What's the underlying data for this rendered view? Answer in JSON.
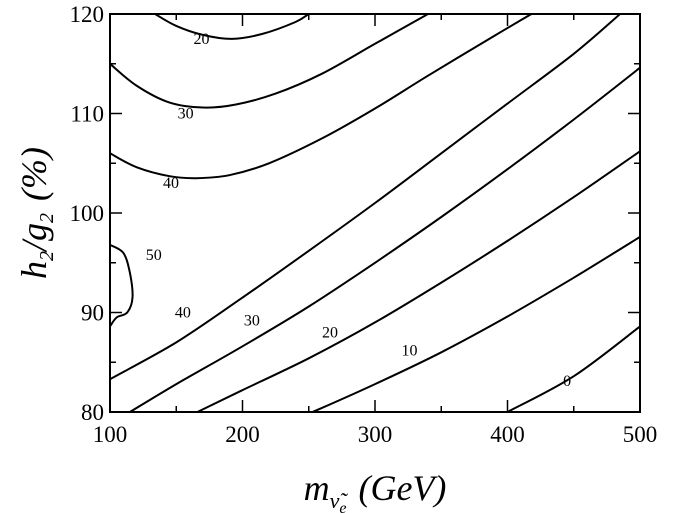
{
  "chart_data": {
    "type": "contour",
    "xlabel": {
      "main": "m",
      "sub1": "ν̃",
      "sub2": "e",
      "unit": "(GeV)"
    },
    "ylabel": {
      "main": "h",
      "sub1": "2",
      "mid": "/g",
      "sub2": "2",
      "unit": "(%)"
    },
    "xlim": [
      100,
      500
    ],
    "ylim": [
      80,
      120
    ],
    "xticks": [
      100,
      200,
      300,
      400,
      500
    ],
    "yticks": [
      80,
      90,
      100,
      110,
      120
    ],
    "grid": false,
    "contours": [
      {
        "level": "20",
        "points": [
          [
            134,
            120
          ],
          [
            150,
            118.8
          ],
          [
            170,
            117.9
          ],
          [
            192,
            117.5
          ],
          [
            215,
            118
          ],
          [
            240,
            119.2
          ],
          [
            250,
            120
          ]
        ],
        "label_at": [
          163,
          117
        ]
      },
      {
        "level": "30",
        "points": [
          [
            100,
            115
          ],
          [
            120,
            112.8
          ],
          [
            145,
            111.1
          ],
          [
            170,
            110.6
          ],
          [
            195,
            110.9
          ],
          [
            225,
            112
          ],
          [
            260,
            114
          ],
          [
            300,
            117
          ],
          [
            340,
            120
          ]
        ],
        "label_at": [
          151,
          109.5
        ]
      },
      {
        "level": "40",
        "points": [
          [
            100,
            106
          ],
          [
            120,
            104.6
          ],
          [
            145,
            103.7
          ],
          [
            165,
            103.5
          ],
          [
            190,
            103.8
          ],
          [
            220,
            105
          ],
          [
            260,
            107.5
          ],
          [
            300,
            110.5
          ],
          [
            340,
            113.8
          ],
          [
            390,
            117.8
          ],
          [
            418,
            120
          ]
        ],
        "label_at": [
          140,
          102.5
        ]
      },
      {
        "level": "50",
        "points": [
          [
            100,
            96.8
          ],
          [
            110,
            96
          ],
          [
            115,
            94
          ],
          [
            117,
            91.5
          ],
          [
            113,
            90
          ],
          [
            105,
            89.5
          ],
          [
            100,
            88.6
          ]
        ],
        "label_at": [
          127,
          95.3
        ]
      },
      {
        "level": "40",
        "points": [
          [
            100,
            83.3
          ],
          [
            150,
            87
          ],
          [
            200,
            91.5
          ],
          [
            250,
            96.2
          ],
          [
            300,
            101
          ],
          [
            350,
            106
          ],
          [
            400,
            111
          ],
          [
            450,
            116
          ],
          [
            485,
            120
          ]
        ],
        "label_at": [
          149,
          89.5
        ]
      },
      {
        "level": "30",
        "points": [
          [
            115,
            80
          ],
          [
            150,
            82.8
          ],
          [
            200,
            86.6
          ],
          [
            250,
            90.6
          ],
          [
            300,
            95
          ],
          [
            350,
            99.6
          ],
          [
            400,
            104.4
          ],
          [
            450,
            109.4
          ],
          [
            500,
            114.6
          ]
        ],
        "label_at": [
          201,
          88.7
        ]
      },
      {
        "level": "20",
        "points": [
          [
            166,
            80
          ],
          [
            200,
            82.2
          ],
          [
            250,
            85.4
          ],
          [
            300,
            89
          ],
          [
            350,
            93
          ],
          [
            400,
            97.2
          ],
          [
            450,
            101.6
          ],
          [
            500,
            106.2
          ]
        ],
        "label_at": [
          260,
          87.5
        ]
      },
      {
        "level": "10",
        "points": [
          [
            253,
            80
          ],
          [
            300,
            82.8
          ],
          [
            350,
            86
          ],
          [
            400,
            89.6
          ],
          [
            450,
            93.5
          ],
          [
            500,
            97.6
          ]
        ],
        "label_at": [
          320,
          85.7
        ]
      },
      {
        "level": "0",
        "points": [
          [
            400,
            80
          ],
          [
            450,
            83.6
          ],
          [
            500,
            88.6
          ]
        ],
        "label_at": [
          442,
          82.6
        ]
      }
    ]
  }
}
